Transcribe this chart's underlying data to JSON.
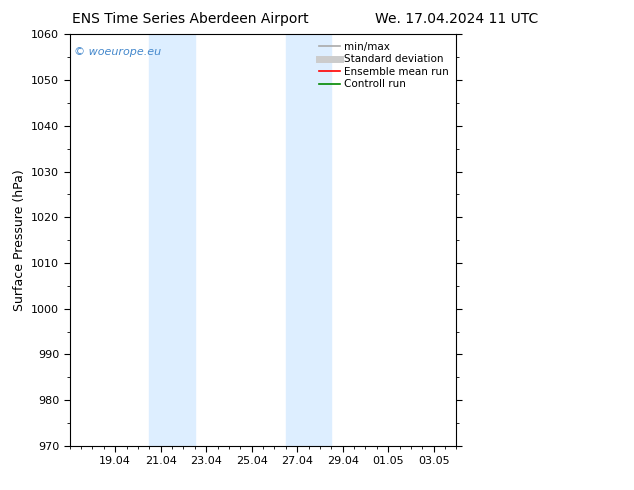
{
  "title_left": "ENS Time Series Aberdeen Airport",
  "title_right": "We. 17.04.2024 11 UTC",
  "ylabel": "Surface Pressure (hPa)",
  "ylim": [
    970,
    1060
  ],
  "yticks": [
    970,
    980,
    990,
    1000,
    1010,
    1020,
    1030,
    1040,
    1050,
    1060
  ],
  "x_tick_labels": [
    "19.04",
    "21.04",
    "23.04",
    "25.04",
    "27.04",
    "29.04",
    "01.05",
    "03.05"
  ],
  "x_tick_positions": [
    2,
    4,
    6,
    8,
    10,
    12,
    14,
    16
  ],
  "xlim": [
    0,
    17
  ],
  "shaded_bands": [
    {
      "xmin": 3.5,
      "xmax": 5.5,
      "color": "#ddeeff"
    },
    {
      "xmin": 9.5,
      "xmax": 11.5,
      "color": "#ddeeff"
    }
  ],
  "watermark_text": "© woeurope.eu",
  "watermark_color": "#4488cc",
  "background_color": "#ffffff",
  "legend_items": [
    {
      "label": "min/max",
      "color": "#aaaaaa",
      "lw": 1.2,
      "style": "solid"
    },
    {
      "label": "Standard deviation",
      "color": "#cccccc",
      "lw": 5,
      "style": "solid"
    },
    {
      "label": "Ensemble mean run",
      "color": "#ff0000",
      "lw": 1.2,
      "style": "solid"
    },
    {
      "label": "Controll run",
      "color": "#008800",
      "lw": 1.2,
      "style": "solid"
    }
  ],
  "title_fontsize": 10,
  "tick_label_fontsize": 8,
  "ylabel_fontsize": 9,
  "legend_fontsize": 7.5,
  "watermark_fontsize": 8
}
